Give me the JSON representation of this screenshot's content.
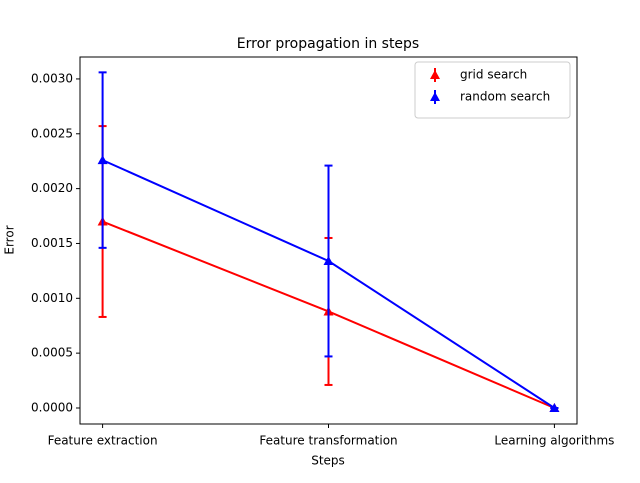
{
  "chart_data": {
    "type": "line",
    "title": "Error propagation in steps",
    "x_label": "Steps",
    "y_label": "Error",
    "categories": [
      "Feature extraction",
      "Feature transformation",
      "Learning algorithms"
    ],
    "series": [
      {
        "name": "grid search",
        "color": "#ff0000",
        "values": [
          0.0017,
          0.00088,
          0
        ],
        "errors": [
          0.00087,
          0.00067,
          0
        ]
      },
      {
        "name": "random search",
        "color": "#0000ff",
        "values": [
          0.00226,
          0.00134,
          0
        ],
        "errors": [
          0.0008,
          0.00087,
          0
        ]
      }
    ],
    "ylim": [
      -0.000146,
      0.0032
    ],
    "yticks": [
      {
        "value": 0,
        "label": "0.0000"
      },
      {
        "value": 0.0005,
        "label": "0.0005"
      },
      {
        "value": 0.001,
        "label": "0.0010"
      },
      {
        "value": 0.0015,
        "label": "0.0015"
      },
      {
        "value": 0.002,
        "label": "0.0020"
      },
      {
        "value": 0.0025,
        "label": "0.0025"
      },
      {
        "value": 0.003,
        "label": "0.0030"
      }
    ],
    "grid": false,
    "legend": "upper right"
  }
}
